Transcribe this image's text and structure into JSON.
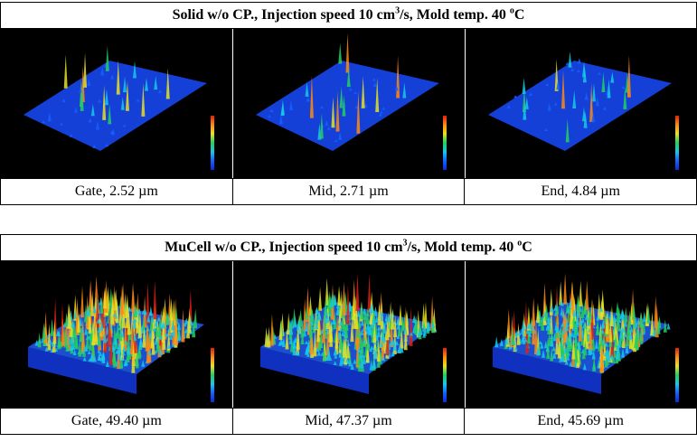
{
  "panels": [
    {
      "title": {
        "lead": "Solid w/o CP., Injection speed 10 cm",
        "sup_a": "3",
        "mid": "/s, Mold temp. 40 ",
        "sup_b": "o",
        "tail": "C"
      },
      "captions": [
        "Gate, 2.52 µm",
        "Mid, 2.71 µm",
        "End, 4.84 µm"
      ]
    },
    {
      "title": {
        "lead": "MuCell w/o CP., Injection speed 10 cm",
        "sup_a": "3",
        "mid": "/s, Mold temp. 40 ",
        "sup_b": "o",
        "tail": "C"
      },
      "captions": [
        "Gate, 49.40 µm",
        "Mid, 47.37 µm",
        "End, 45.69 µm"
      ]
    }
  ]
}
